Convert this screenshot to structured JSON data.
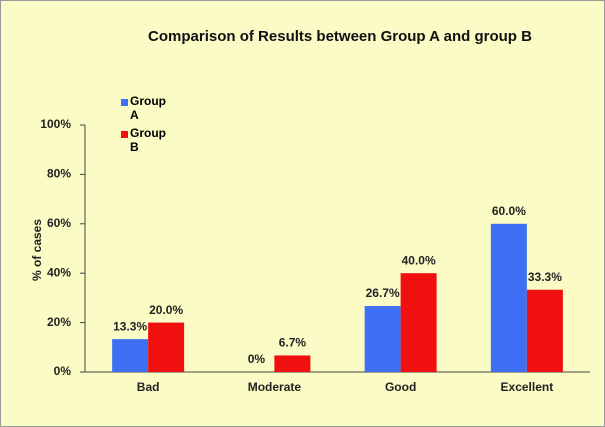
{
  "chart_data": {
    "type": "bar",
    "title": "Comparison of Results between Group A and group B",
    "ylabel": "% of cases",
    "categories": [
      "Bad",
      "Moderate",
      "Good",
      "Excellent"
    ],
    "series": [
      {
        "name": "Group A",
        "color": "#3f6ff5",
        "values": [
          13.3,
          0,
          26.7,
          60.0
        ],
        "value_labels": [
          "13.3%",
          "0%",
          "26.7%",
          "60.0%"
        ]
      },
      {
        "name": "Group B",
        "color": "#f01010",
        "values": [
          20.0,
          6.7,
          40.0,
          33.3
        ],
        "value_labels": [
          "20.0%",
          "6.7%",
          "40.0%",
          "33.3%"
        ]
      }
    ],
    "ylim": [
      0,
      100
    ],
    "yticks": [
      {
        "value": 0,
        "label": "0%"
      },
      {
        "value": 20,
        "label": "20%"
      },
      {
        "value": 40,
        "label": "40%"
      },
      {
        "value": 60,
        "label": "60%"
      },
      {
        "value": 80,
        "label": "80%"
      },
      {
        "value": 100,
        "label": "100%"
      }
    ],
    "legend": "upper left"
  }
}
